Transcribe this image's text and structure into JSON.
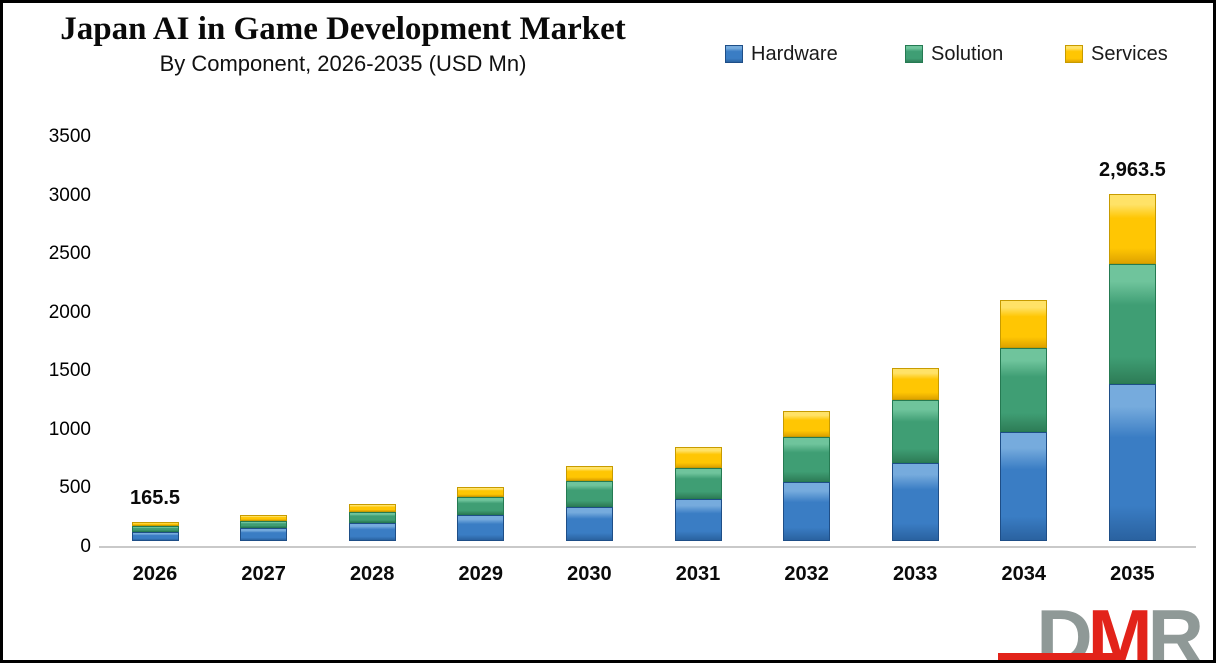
{
  "header": {
    "title": "Japan AI in Game Development Market",
    "subtitle": "By Component, 2026-2035 (USD Mn)"
  },
  "legend": {
    "position": "top-right",
    "items": [
      {
        "label": "Hardware",
        "color": "#3a7dc4"
      },
      {
        "label": "Solution",
        "color": "#3f9e74"
      },
      {
        "label": "Services",
        "color": "#ffc603"
      }
    ]
  },
  "chart_data": {
    "type": "bar",
    "stacked": true,
    "title": "Japan AI in Game Development Market",
    "subtitle": "By Component, 2026-2035 (USD Mn)",
    "xlabel": "",
    "ylabel": "USD Mn",
    "ylim": [
      0,
      3500
    ],
    "yticks": [
      0,
      500,
      1000,
      1500,
      2000,
      2500,
      3000,
      3500
    ],
    "grid": false,
    "legend_position": "top-right",
    "categories": [
      "2026",
      "2027",
      "2028",
      "2029",
      "2030",
      "2031",
      "2032",
      "2033",
      "2034",
      "2035"
    ],
    "series": [
      {
        "name": "Hardware",
        "color": "#3a7dc4",
        "color_light": "#76abdd",
        "color_dark": "#2a62a0",
        "color_border": "#1e4e87",
        "values": [
          80,
          108,
          150,
          220,
          290,
          360,
          500,
          665,
          930,
          1340
        ]
      },
      {
        "name": "Solution",
        "color": "#3f9e74",
        "color_light": "#6fc49c",
        "color_dark": "#2e7d57",
        "color_border": "#257a52",
        "values": [
          47,
          62,
          95,
          155,
          225,
          265,
          390,
          535,
          720,
          1026
        ]
      },
      {
        "name": "Services",
        "color": "#ffc603",
        "color_light": "#ffe267",
        "color_dark": "#dfa300",
        "color_border": "#c79b00",
        "values": [
          38.5,
          50,
          75,
          90,
          125,
          180,
          220,
          275,
          405,
          597.5
        ]
      }
    ],
    "annotations": [
      {
        "category": "2026",
        "label": "165.5"
      },
      {
        "category": "2035",
        "label": "2,963.5"
      }
    ]
  },
  "logo": {
    "letters": [
      {
        "char": "D",
        "color": "#8f9997"
      },
      {
        "char": "M",
        "color": "#e2231a"
      },
      {
        "char": "R",
        "color": "#8f9997"
      }
    ]
  }
}
